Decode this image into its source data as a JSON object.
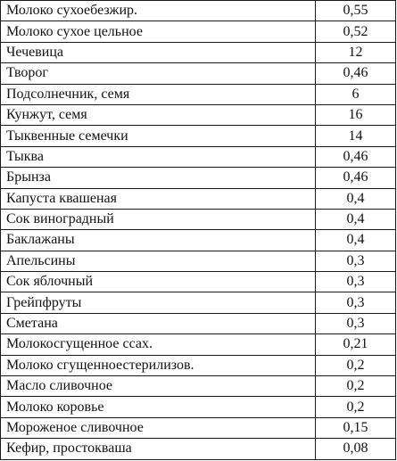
{
  "table": {
    "rows": [
      {
        "name": "Молоко сухоебезжир.",
        "value": "0,55"
      },
      {
        "name": "Молоко сухое цельное",
        "value": "0,52"
      },
      {
        "name": "Чечевица",
        "value": "12"
      },
      {
        "name": "Творог",
        "value": "0,46"
      },
      {
        "name": "Подсолнечник, семя",
        "value": "6"
      },
      {
        "name": "Кунжут, семя",
        "value": "16"
      },
      {
        "name": "Тыквенные семечки",
        "value": "14"
      },
      {
        "name": "Тыква",
        "value": "0,46"
      },
      {
        "name": "Брынза",
        "value": "0,46"
      },
      {
        "name": "Капуста квашеная",
        "value": "0,4"
      },
      {
        "name": "Сок виноградный",
        "value": "0,4"
      },
      {
        "name": "Баклажаны",
        "value": "0,4"
      },
      {
        "name": "Апельсины",
        "value": "0,3"
      },
      {
        "name": "Сок яблочный",
        "value": "0,3"
      },
      {
        "name": "Грейпфруты",
        "value": "0,3"
      },
      {
        "name": "Сметана",
        "value": "0,3"
      },
      {
        "name": "Молокосгущенное ссах.",
        "value": "0,21"
      },
      {
        "name": "Молоко сгущенноестерилизов.",
        "value": "0,2"
      },
      {
        "name": "Масло сливочное",
        "value": "0,2"
      },
      {
        "name": "Молоко коровье",
        "value": "0,2"
      },
      {
        "name": "Мороженое сливочное",
        "value": "0,15"
      },
      {
        "name": "Кефир, простокваша",
        "value": "0,08"
      }
    ]
  }
}
